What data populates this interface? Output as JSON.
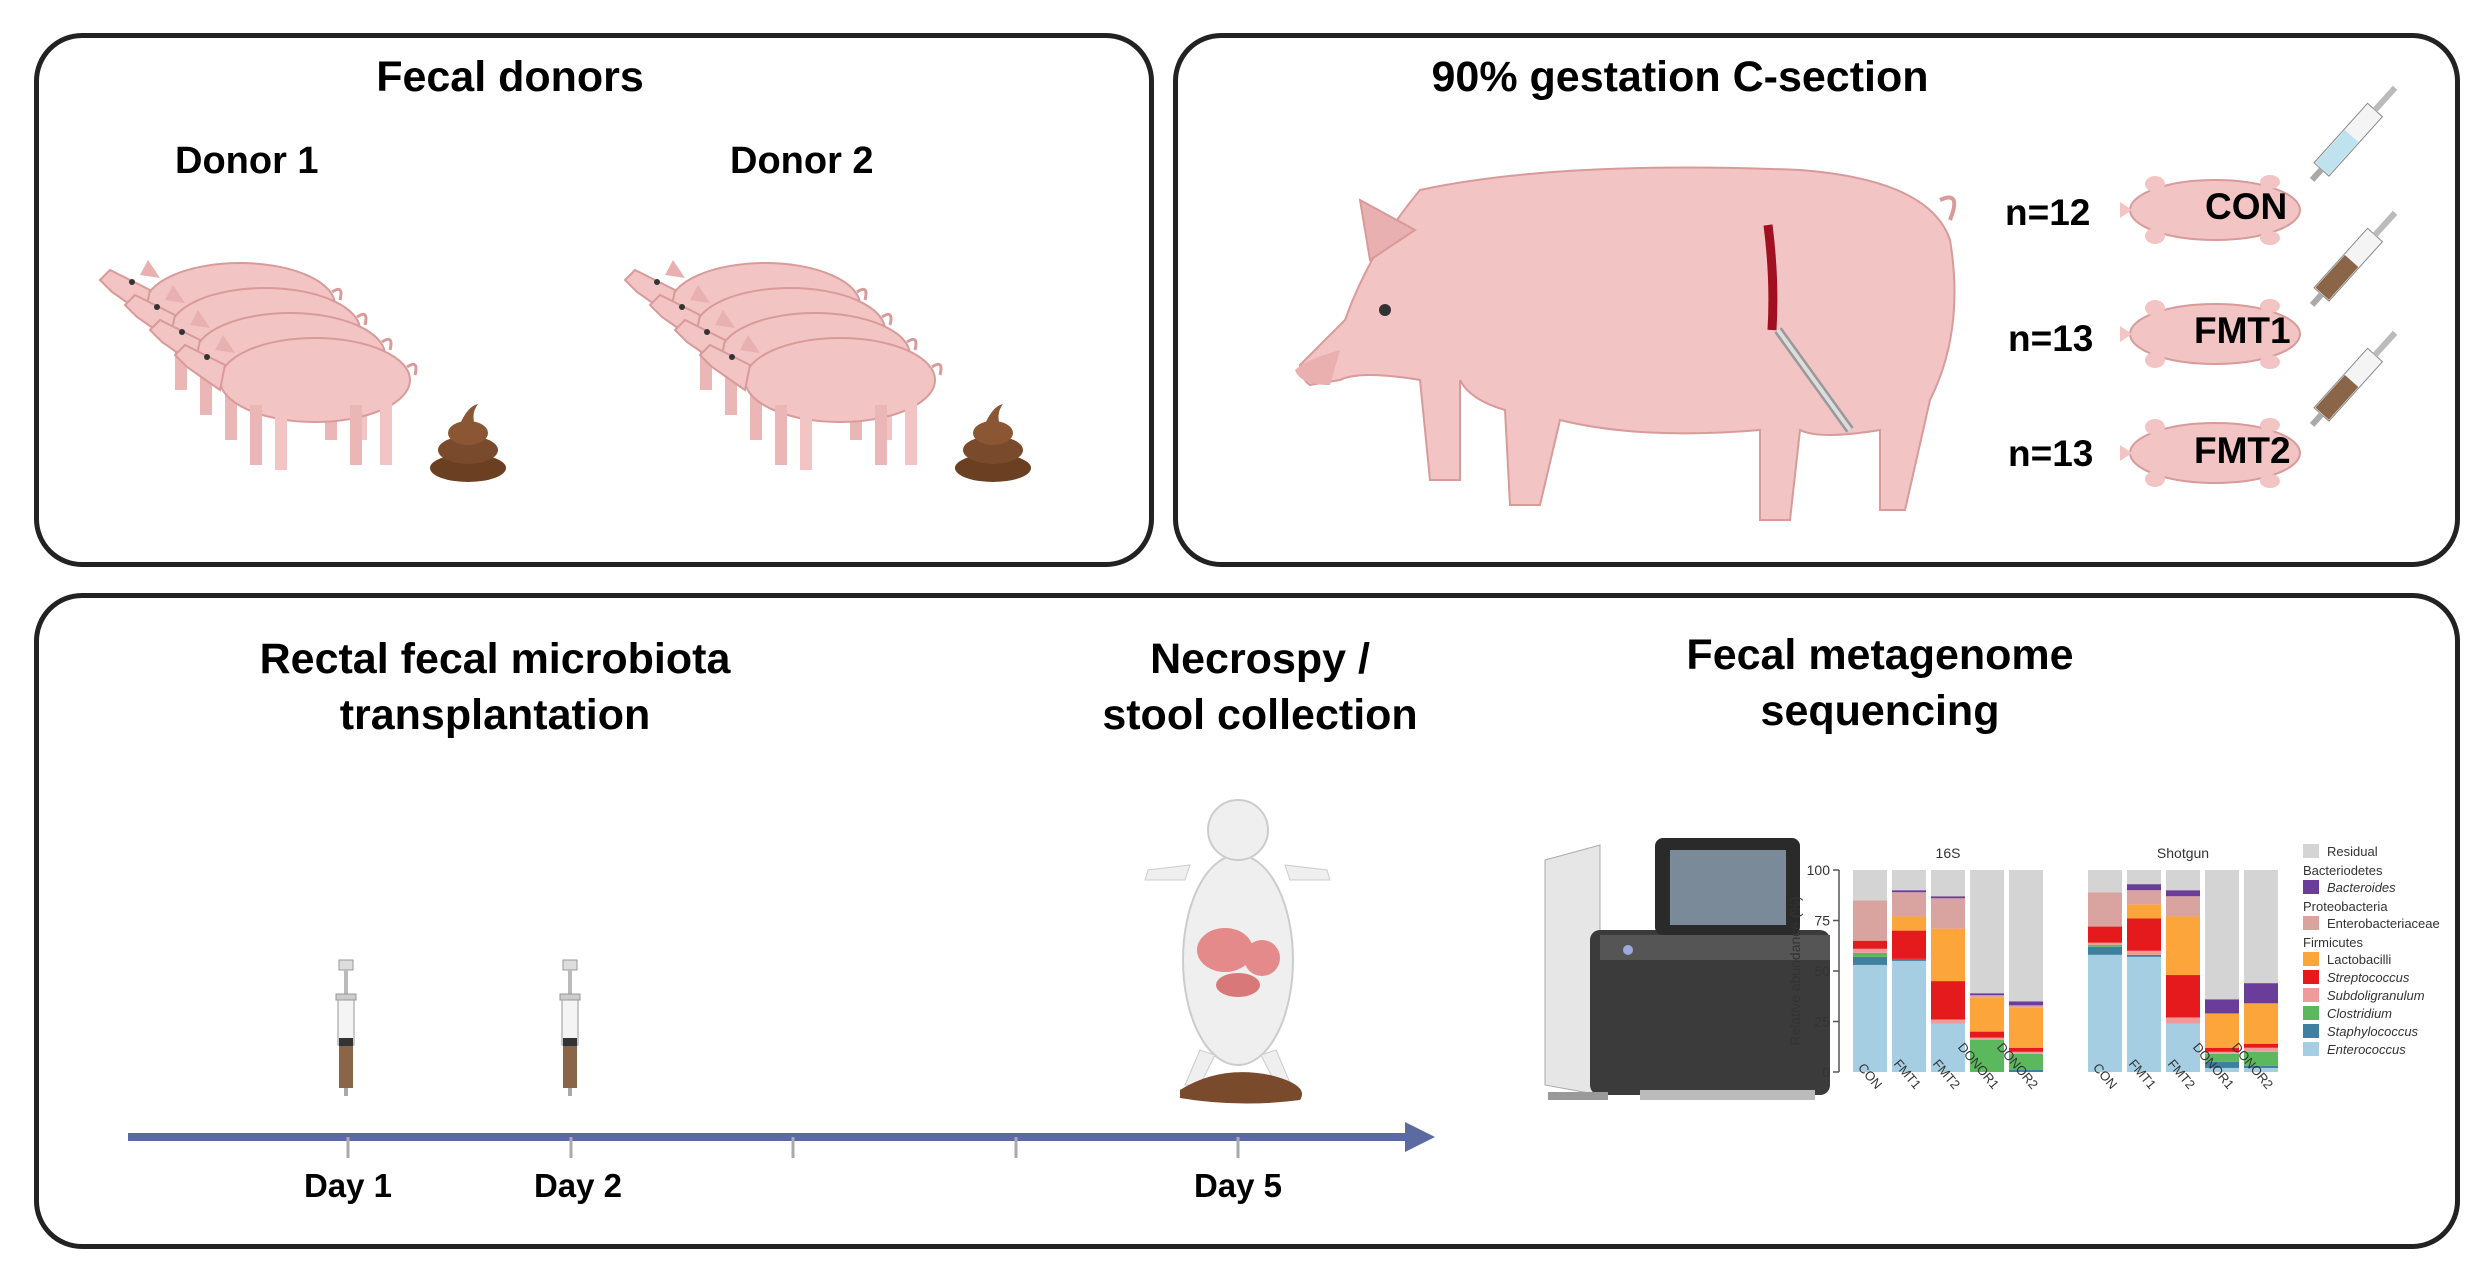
{
  "donors_panel": {
    "title": "Fecal donors",
    "donor1": "Donor 1",
    "donor2": "Donor 2"
  },
  "csection_panel": {
    "title": "90% gestation C-section",
    "groups": [
      {
        "n": "n=12",
        "name": "CON",
        "syringe_color": "#bfe3ee"
      },
      {
        "n": "n=13",
        "name": "FMT1",
        "syringe_color": "#8a6548"
      },
      {
        "n": "n=13",
        "name": "FMT2",
        "syringe_color": "#8a6548"
      }
    ]
  },
  "timeline_panel": {
    "title_fmt": "Rectal fecal microbiota\ntransplantation",
    "title_necropsy": "Necrospy /\nstool collection",
    "title_seq": "Fecal metagenome\nsequencing",
    "days": [
      "Day 1",
      "Day 2",
      "Day 5"
    ]
  },
  "colors": {
    "pig": "#f2c4c4",
    "pig_dark": "#d99a9a",
    "stool": "#7a4a2c",
    "timeline": "#5b6aa0",
    "instrument": "#3b3b3b"
  },
  "chart_data": {
    "type": "bar",
    "stacked": true,
    "panels": [
      "16S",
      "Shotgun"
    ],
    "categories": [
      "CON",
      "FMT1",
      "FMT2",
      "DONOR1",
      "DONOR2"
    ],
    "ylabel": "Relative abundance (%)",
    "ylim": [
      0,
      100
    ],
    "yticks": [
      "0",
      "25",
      "50",
      "75",
      "100"
    ],
    "legend": [
      {
        "group": "",
        "name": "Residual",
        "color": "#d4d4d4"
      },
      {
        "group": "Bacteriodetes",
        "name": "Bacteroides",
        "color": "#6a3d9a"
      },
      {
        "group": "Proteobacteria",
        "name": "Enterobacteriaceae",
        "color": "#d9a4a0"
      },
      {
        "group": "Firmicutes",
        "name": "Lactobacilli",
        "color": "#fba53b"
      },
      {
        "group": "",
        "name": "Streptococcus",
        "color": "#e41a1c"
      },
      {
        "group": "",
        "name": "Subdoligranulum",
        "color": "#f19a9b"
      },
      {
        "group": "",
        "name": "Clostridium",
        "color": "#5cb85c"
      },
      {
        "group": "",
        "name": "Staphylococcus",
        "color": "#3f7f9f"
      },
      {
        "group": "",
        "name": "Enterococcus",
        "color": "#a6cee3"
      }
    ],
    "series_order": [
      "Enterococcus",
      "Staphylococcus",
      "Clostridium",
      "Subdoligranulum",
      "Streptococcus",
      "Lactobacilli",
      "Enterobacteriaceae",
      "Bacteroides",
      "Residual"
    ],
    "values": {
      "16S": {
        "CON": [
          53,
          4,
          2,
          2,
          4,
          0,
          20,
          0,
          15
        ],
        "FMT1": [
          55,
          1,
          0,
          0,
          14,
          7,
          12,
          1,
          10
        ],
        "FMT2": [
          24,
          0,
          0,
          2,
          19,
          26,
          15,
          1,
          13
        ],
        "DONOR1": [
          0,
          0,
          16,
          1,
          3,
          17,
          1,
          1,
          61
        ],
        "DONOR2": [
          0,
          1,
          8,
          1,
          2,
          20,
          1,
          2,
          65
        ]
      },
      "Shotgun": {
        "CON": [
          58,
          4,
          1,
          1,
          8,
          0,
          17,
          0,
          11
        ],
        "FMT1": [
          57,
          1,
          0,
          2,
          16,
          7,
          7,
          3,
          7
        ],
        "FMT2": [
          24,
          0,
          0,
          3,
          21,
          29,
          10,
          3,
          10
        ],
        "DONOR1": [
          2,
          3,
          4,
          1,
          2,
          17,
          0,
          7,
          64
        ],
        "DONOR2": [
          2,
          1,
          7,
          2,
          2,
          20,
          0,
          10,
          56
        ]
      }
    }
  }
}
